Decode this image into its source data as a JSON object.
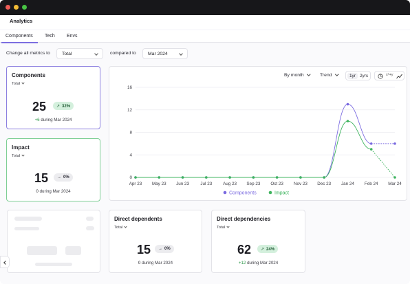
{
  "app": {
    "title": "Analytics"
  },
  "tabs": [
    {
      "label": "Components",
      "active": true
    },
    {
      "label": "Tech",
      "active": false
    },
    {
      "label": "Envs",
      "active": false
    }
  ],
  "filters": {
    "change_label": "Change all metrics to",
    "metric_value": "Total",
    "compared_label": "compared to",
    "period_value": "Mar 2024"
  },
  "cards": {
    "components": {
      "title": "Components",
      "sub": "Total",
      "value": "25",
      "badge": "32%",
      "delta": "+6",
      "caption": "during Mar 2024"
    },
    "impact": {
      "title": "Impact",
      "sub": "Total",
      "value": "15",
      "badge": "0%",
      "delta": "0",
      "caption": "during Mar 2024"
    },
    "direct_dependents": {
      "title": "Direct dependents",
      "sub": "Total",
      "value": "15",
      "badge": "0%",
      "delta": "0",
      "caption": "during Mar 2024"
    },
    "direct_dependencies": {
      "title": "Direct dependencies",
      "sub": "Total",
      "value": "62",
      "badge": "24%",
      "delta": "+12",
      "caption": "during Mar 2024"
    }
  },
  "chart_controls": {
    "group_by": "By month",
    "mode": "Trend",
    "range_1": "1yr",
    "range_2": "2yrs",
    "icon_label": "x²+y"
  },
  "colors": {
    "components": "#7a6ae0",
    "impact": "#3fb45f",
    "accent": "#7c6ee0"
  },
  "chart_data": {
    "type": "line",
    "categories": [
      "Apr 23",
      "May 23",
      "Jun 23",
      "Jul 23",
      "Aug 23",
      "Sep 23",
      "Oct 23",
      "Nov 23",
      "Dec 23",
      "Jan 24",
      "Feb 24",
      "Mar 24"
    ],
    "series": [
      {
        "name": "Components",
        "values": [
          0,
          0,
          0,
          0,
          0,
          0,
          0,
          0,
          0,
          13,
          6,
          6
        ],
        "dashed_last_segment": true
      },
      {
        "name": "Impact",
        "values": [
          0,
          0,
          0,
          0,
          0,
          0,
          0,
          0,
          0,
          10,
          5,
          0
        ],
        "dashed_last_segment": true
      }
    ],
    "ylim": [
      0,
      16
    ],
    "yticks": [
      "0",
      "4",
      "8",
      "12",
      "16"
    ],
    "grid": "horizontal",
    "legend": "bottom-center"
  }
}
